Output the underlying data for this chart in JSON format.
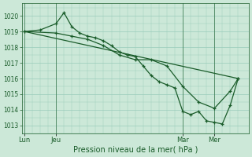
{
  "bg_color": "#cce8d8",
  "grid_color": "#99ccbb",
  "line_color": "#1a5c2a",
  "xlabel": "Pression niveau de la mer( hPa )",
  "ylim": [
    1012.5,
    1020.8
  ],
  "yticks": [
    1013,
    1014,
    1015,
    1016,
    1017,
    1018,
    1019,
    1020
  ],
  "xlim": [
    -2,
    170
  ],
  "xtick_labels": [
    "Lun",
    "Jeu",
    "Mar",
    "Mer"
  ],
  "xtick_positions": [
    0,
    24,
    120,
    144
  ],
  "vlines": [
    0,
    24,
    120,
    144
  ],
  "series1_straight": {
    "x": [
      0,
      162
    ],
    "y": [
      1019.0,
      1016.0
    ]
  },
  "series2_peak": {
    "x": [
      0,
      12,
      24,
      30,
      36,
      42,
      48,
      54,
      60,
      66,
      72,
      78,
      84,
      90,
      96,
      102,
      108,
      114,
      120,
      126,
      132,
      138,
      144,
      150,
      156,
      162
    ],
    "y": [
      1019.0,
      1019.1,
      1019.5,
      1020.2,
      1019.3,
      1018.9,
      1018.7,
      1018.6,
      1018.4,
      1018.1,
      1017.7,
      1017.5,
      1017.4,
      1016.8,
      1016.2,
      1015.8,
      1015.6,
      1015.4,
      1013.9,
      1013.7,
      1013.9,
      1013.3,
      1013.2,
      1013.1,
      1014.3,
      1016.0
    ]
  },
  "series3_smooth": {
    "x": [
      0,
      24,
      36,
      48,
      60,
      72,
      84,
      96,
      108,
      120,
      132,
      144,
      156,
      162
    ],
    "y": [
      1019.0,
      1018.9,
      1018.7,
      1018.5,
      1018.1,
      1017.5,
      1017.2,
      1017.2,
      1016.8,
      1015.5,
      1014.5,
      1014.1,
      1015.2,
      1016.0
    ]
  }
}
